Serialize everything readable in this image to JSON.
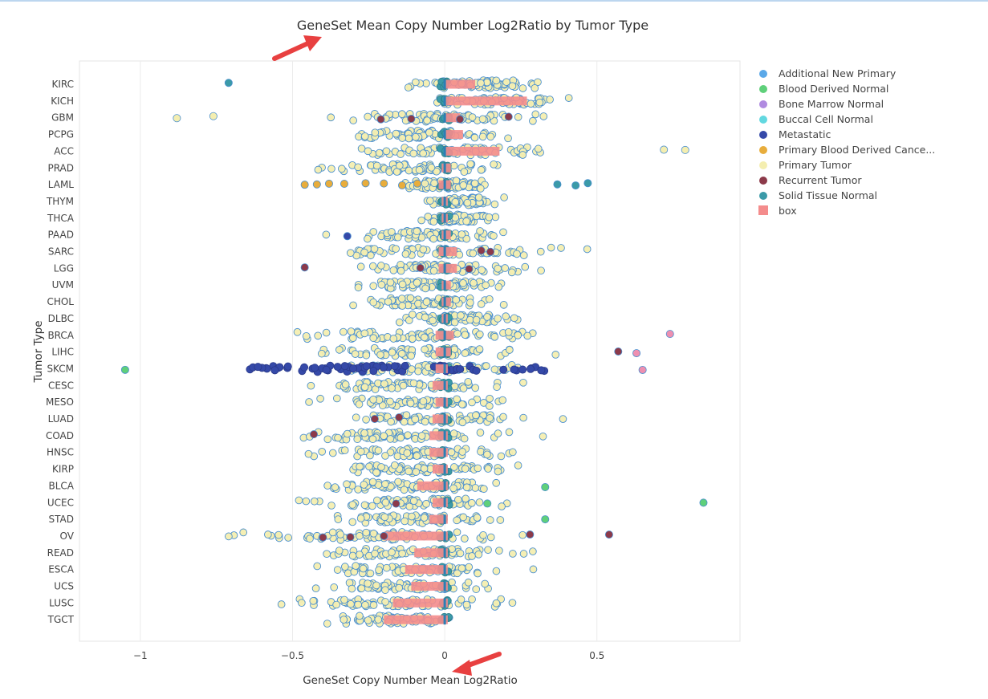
{
  "chart_data": {
    "type": "scatter",
    "title": "GeneSet Mean Copy Number Log2Ratio by Tumor Type",
    "xlabel": "GeneSet Copy Number Mean Log2Ratio",
    "ylabel": "Tumor Type",
    "xlim": [
      -1.2,
      0.97
    ],
    "xticks": [
      -1,
      -0.5,
      0,
      0.5
    ],
    "xtick_labels": [
      "−1",
      "−0.5",
      "0",
      "0.5"
    ],
    "grid": true,
    "legend_position": "top-right",
    "categories": [
      "KIRC",
      "KICH",
      "GBM",
      "PCPG",
      "ACC",
      "PRAD",
      "LAML",
      "THYM",
      "THCA",
      "PAAD",
      "SARC",
      "LGG",
      "UVM",
      "CHOL",
      "DLBC",
      "BRCA",
      "LIHC",
      "SKCM",
      "CESC",
      "MESO",
      "LUAD",
      "COAD",
      "HNSC",
      "KIRP",
      "BLCA",
      "UCEC",
      "STAD",
      "OV",
      "READ",
      "ESCA",
      "UCS",
      "LUSC",
      "TGCT"
    ],
    "series": [
      {
        "name": "Additional New Primary",
        "color": "#5aa8e8"
      },
      {
        "name": "Blood Derived Normal",
        "color": "#5fd07a"
      },
      {
        "name": "Bone Marrow Normal",
        "color": "#b08be0"
      },
      {
        "name": "Buccal Cell Normal",
        "color": "#62d8e0"
      },
      {
        "name": "Metastatic",
        "color": "#3549a8"
      },
      {
        "name": "Primary Blood Derived Cance...",
        "color": "#e8ad3c"
      },
      {
        "name": "Primary Tumor",
        "color": "#f4eeb0"
      },
      {
        "name": "Recurrent Tumor",
        "color": "#8c3a4a"
      },
      {
        "name": "Solid Tissue Normal",
        "color": "#3b9aa8"
      },
      {
        "name": "box",
        "color": "#f48c8c"
      }
    ],
    "primary_tumor_spread": {
      "KIRC": [
        -0.2,
        0.4
      ],
      "KICH": [
        -0.1,
        0.45
      ],
      "GBM": [
        -0.45,
        0.45
      ],
      "PCPG": [
        -0.45,
        0.3
      ],
      "ACC": [
        -0.4,
        0.5
      ],
      "PRAD": [
        -0.5,
        0.3
      ],
      "LAML": [
        -0.2,
        0.2
      ],
      "THYM": [
        -0.1,
        0.2
      ],
      "THCA": [
        -0.1,
        0.2
      ],
      "PAAD": [
        -0.4,
        0.3
      ],
      "SARC": [
        -0.5,
        0.5
      ],
      "LGG": [
        -0.45,
        0.45
      ],
      "UVM": [
        -0.4,
        0.3
      ],
      "CHOL": [
        -0.4,
        0.3
      ],
      "DLBC": [
        -0.2,
        0.3
      ],
      "BRCA": [
        -0.65,
        0.5
      ],
      "LIHC": [
        -0.55,
        0.4
      ],
      "SKCM": [
        -0.5,
        0.35
      ],
      "CESC": [
        -0.55,
        0.35
      ],
      "MESO": [
        -0.5,
        0.3
      ],
      "LUAD": [
        -0.5,
        0.35
      ],
      "COAD": [
        -0.6,
        0.3
      ],
      "HNSC": [
        -0.55,
        0.4
      ],
      "KIRP": [
        -0.45,
        0.3
      ],
      "BLCA": [
        -0.6,
        0.35
      ],
      "UCEC": [
        -0.6,
        0.35
      ],
      "STAD": [
        -0.55,
        0.35
      ],
      "OV": [
        -0.85,
        0.5
      ],
      "READ": [
        -0.55,
        0.35
      ],
      "ESCA": [
        -0.55,
        0.35
      ],
      "UCS": [
        -0.5,
        0.3
      ],
      "LUSC": [
        -0.7,
        0.4
      ],
      "TGCT": [
        -0.45,
        0.1
      ]
    },
    "boxes": {
      "KIRC": [
        0,
        0.1
      ],
      "KICH": [
        0,
        0.27
      ],
      "GBM": [
        0,
        0.05
      ],
      "PCPG": [
        0,
        0.06
      ],
      "ACC": [
        0,
        0.18
      ],
      "PRAD": [
        -0.01,
        0.02
      ],
      "LAML": [
        -0.02,
        0.02
      ],
      "THYM": [
        -0.01,
        0.01
      ],
      "THCA": [
        -0.01,
        0.01
      ],
      "PAAD": [
        -0.01,
        0.02
      ],
      "SARC": [
        -0.02,
        0.04
      ],
      "LGG": [
        -0.02,
        0.04
      ],
      "UVM": [
        -0.01,
        0.02
      ],
      "CHOL": [
        -0.01,
        0.02
      ],
      "DLBC": [
        -0.01,
        0.01
      ],
      "BRCA": [
        -0.03,
        0.03
      ],
      "LIHC": [
        -0.03,
        0.02
      ],
      "SKCM": [
        -0.03,
        0.01
      ],
      "CESC": [
        -0.04,
        0.01
      ],
      "MESO": [
        -0.03,
        0.01
      ],
      "LUAD": [
        -0.04,
        0.01
      ],
      "COAD": [
        -0.05,
        0.01
      ],
      "HNSC": [
        -0.05,
        0.01
      ],
      "KIRP": [
        -0.04,
        0.01
      ],
      "BLCA": [
        -0.09,
        0.01
      ],
      "UCEC": [
        -0.04,
        0.01
      ],
      "STAD": [
        -0.05,
        0.01
      ],
      "OV": [
        -0.2,
        0.01
      ],
      "READ": [
        -0.1,
        0.01
      ],
      "ESCA": [
        -0.13,
        0.01
      ],
      "UCS": [
        -0.11,
        0.01
      ],
      "LUSC": [
        -0.17,
        0.01
      ],
      "TGCT": [
        -0.2,
        0.01
      ]
    },
    "special_points": [
      {
        "category": "KIRC",
        "x": -0.71,
        "series": "Solid Tissue Normal"
      },
      {
        "category": "GBM",
        "x": -0.88,
        "series": "Primary Tumor"
      },
      {
        "category": "GBM",
        "x": -0.76,
        "series": "Primary Tumor"
      },
      {
        "category": "GBM",
        "x": -0.21,
        "series": "Recurrent Tumor"
      },
      {
        "category": "GBM",
        "x": -0.11,
        "series": "Recurrent Tumor"
      },
      {
        "category": "GBM",
        "x": 0.05,
        "series": "Recurrent Tumor"
      },
      {
        "category": "GBM",
        "x": 0.21,
        "series": "Recurrent Tumor"
      },
      {
        "category": "ACC",
        "x": 0.72,
        "series": "Primary Tumor"
      },
      {
        "category": "ACC",
        "x": 0.79,
        "series": "Primary Tumor"
      },
      {
        "category": "LAML",
        "x": -0.46,
        "series": "Primary Blood Derived Cance..."
      },
      {
        "category": "LAML",
        "x": -0.42,
        "series": "Primary Blood Derived Cance..."
      },
      {
        "category": "LAML",
        "x": -0.38,
        "series": "Primary Blood Derived Cance..."
      },
      {
        "category": "LAML",
        "x": -0.33,
        "series": "Primary Blood Derived Cance..."
      },
      {
        "category": "LAML",
        "x": -0.26,
        "series": "Primary Blood Derived Cance..."
      },
      {
        "category": "LAML",
        "x": -0.2,
        "series": "Primary Blood Derived Cance..."
      },
      {
        "category": "LAML",
        "x": -0.14,
        "series": "Primary Blood Derived Cance..."
      },
      {
        "category": "LAML",
        "x": -0.09,
        "series": "Primary Blood Derived Cance..."
      },
      {
        "category": "LAML",
        "x": 0.37,
        "series": "Solid Tissue Normal"
      },
      {
        "category": "LAML",
        "x": 0.43,
        "series": "Solid Tissue Normal"
      },
      {
        "category": "LAML",
        "x": 0.47,
        "series": "Solid Tissue Normal"
      },
      {
        "category": "PAAD",
        "x": -0.32,
        "series": "Metastatic"
      },
      {
        "category": "SARC",
        "x": 0.12,
        "series": "Recurrent Tumor"
      },
      {
        "category": "SARC",
        "x": 0.15,
        "series": "Recurrent Tumor"
      },
      {
        "category": "LGG",
        "x": -0.46,
        "series": "Recurrent Tumor"
      },
      {
        "category": "LGG",
        "x": -0.08,
        "series": "Recurrent Tumor"
      },
      {
        "category": "LGG",
        "x": 0.08,
        "series": "Recurrent Tumor"
      },
      {
        "category": "BRCA",
        "x": 0.74,
        "series": "Recurrent Tumor"
      },
      {
        "category": "LIHC",
        "x": 0.57,
        "series": "Recurrent Tumor"
      },
      {
        "category": "LIHC",
        "x": 0.63,
        "series": "Recurrent Tumor"
      },
      {
        "category": "SKCM",
        "x": -1.05,
        "series": "Blood Derived Normal"
      },
      {
        "category": "SKCM",
        "x": 0.65,
        "series": "Recurrent Tumor"
      },
      {
        "category": "LUAD",
        "x": -0.23,
        "series": "Recurrent Tumor"
      },
      {
        "category": "LUAD",
        "x": -0.15,
        "series": "Recurrent Tumor"
      },
      {
        "category": "COAD",
        "x": -0.43,
        "series": "Recurrent Tumor"
      },
      {
        "category": "BLCA",
        "x": 0.33,
        "series": "Blood Derived Normal"
      },
      {
        "category": "UCEC",
        "x": -0.16,
        "series": "Recurrent Tumor"
      },
      {
        "category": "UCEC",
        "x": 0.14,
        "series": "Blood Derived Normal"
      },
      {
        "category": "UCEC",
        "x": 0.85,
        "series": "Blood Derived Normal"
      },
      {
        "category": "STAD",
        "x": 0.33,
        "series": "Blood Derived Normal"
      },
      {
        "category": "OV",
        "x": -0.4,
        "series": "Recurrent Tumor"
      },
      {
        "category": "OV",
        "x": -0.31,
        "series": "Recurrent Tumor"
      },
      {
        "category": "OV",
        "x": -0.2,
        "series": "Recurrent Tumor"
      },
      {
        "category": "OV",
        "x": 0.28,
        "series": "Recurrent Tumor"
      },
      {
        "category": "OV",
        "x": 0.54,
        "series": "Recurrent Tumor"
      }
    ]
  }
}
